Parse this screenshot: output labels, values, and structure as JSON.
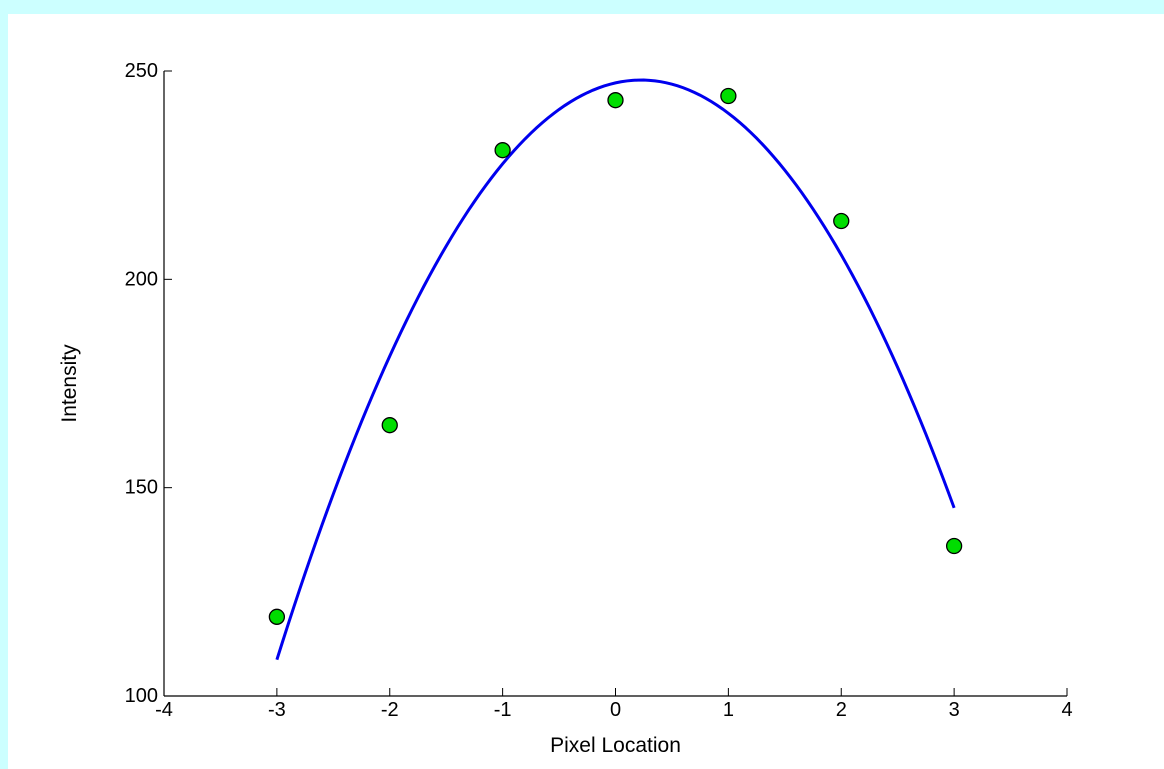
{
  "chart_data": {
    "type": "scatter",
    "title": "",
    "xlabel": "Pixel Location",
    "ylabel": "Intensity",
    "xlim": [
      -4,
      4
    ],
    "ylim": [
      100,
      250
    ],
    "x_ticks": [
      -4,
      -3,
      -2,
      -1,
      0,
      1,
      2,
      3,
      4
    ],
    "y_ticks": [
      100,
      150,
      200,
      250
    ],
    "x_tick_labels": [
      "-4",
      "-3",
      "-2",
      "-1",
      "0",
      "1",
      "2",
      "3",
      "4"
    ],
    "y_tick_labels": [
      "100",
      "150",
      "200",
      "250"
    ],
    "grid": false,
    "legend": "none",
    "series": [
      {
        "kind": "scatter",
        "marker": "circle",
        "color": "#00dd00",
        "edge_color": "#000000",
        "points": [
          {
            "x": -3,
            "y": 119
          },
          {
            "x": -2,
            "y": 165
          },
          {
            "x": -1,
            "y": 231
          },
          {
            "x": 0,
            "y": 243
          },
          {
            "x": 1,
            "y": 244
          },
          {
            "x": 2,
            "y": 214
          },
          {
            "x": 3,
            "y": 136
          }
        ]
      },
      {
        "kind": "line",
        "color": "#0000ee",
        "x_range": [
          -3,
          3
        ],
        "fit": "quadratic",
        "points": [
          {
            "x": -3,
            "y": 109
          },
          {
            "x": -2,
            "y": 181
          },
          {
            "x": -1,
            "y": 228
          },
          {
            "x": 0,
            "y": 247
          },
          {
            "x": 1,
            "y": 240
          },
          {
            "x": 2,
            "y": 206
          },
          {
            "x": 3,
            "y": 145
          }
        ]
      }
    ]
  }
}
